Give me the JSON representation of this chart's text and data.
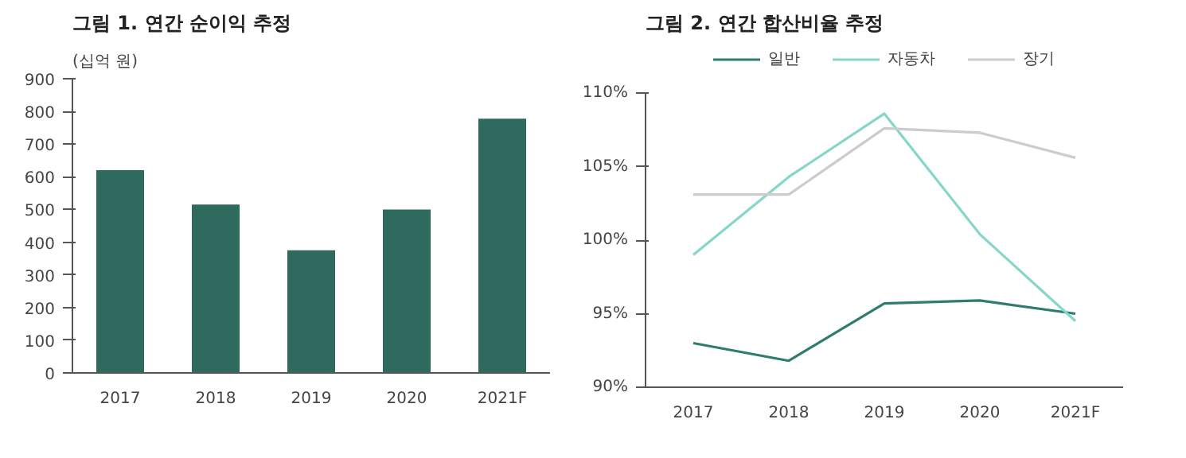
{
  "chart_data": [
    {
      "type": "bar",
      "title": "그림 1. 연간 순이익 추정",
      "ylabel": "(십억 원)",
      "categories": [
        "2017",
        "2018",
        "2019",
        "2020",
        "2021F"
      ],
      "values": [
        620,
        515,
        375,
        500,
        778
      ],
      "color": "#2e6b5e",
      "ylim": [
        0,
        900
      ],
      "yticks": [
        0,
        100,
        200,
        300,
        400,
        500,
        600,
        700,
        800,
        900
      ],
      "grid": false
    },
    {
      "type": "line",
      "title": "그림 2. 연간 합산비율 추정",
      "categories": [
        "2017",
        "2018",
        "2019",
        "2020",
        "2021F"
      ],
      "series": [
        {
          "name": "일반",
          "color": "#2e7d6e",
          "values": [
            93.0,
            91.8,
            95.7,
            95.9,
            95.0
          ]
        },
        {
          "name": "자동차",
          "color": "#86d6c9",
          "values": [
            99.0,
            104.3,
            108.6,
            100.4,
            94.5
          ]
        },
        {
          "name": "장기",
          "color": "#cccccc",
          "values": [
            103.1,
            103.1,
            107.6,
            107.3,
            105.6
          ]
        }
      ],
      "ylim": [
        90,
        110
      ],
      "yticks": [
        {
          "value": 90,
          "label": "90%"
        },
        {
          "value": 95,
          "label": "95%"
        },
        {
          "value": 100,
          "label": "100%"
        },
        {
          "value": 105,
          "label": "105%"
        },
        {
          "value": 110,
          "label": "110%"
        }
      ],
      "grid": false,
      "legend": "top",
      "marker": "none",
      "line_style": "solid"
    }
  ]
}
